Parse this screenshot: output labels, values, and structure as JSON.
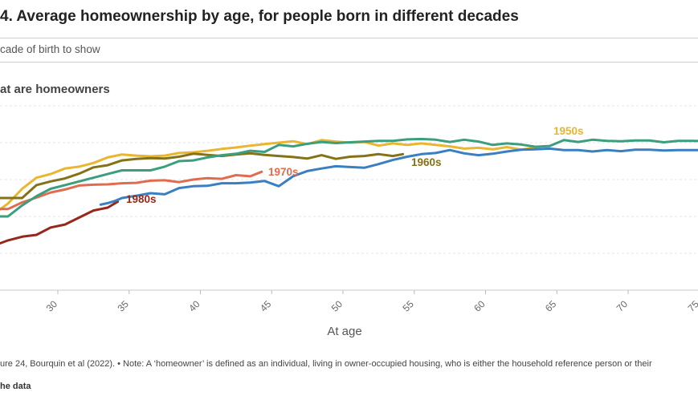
{
  "header": {
    "title": "4. Average homeownership by age, for people born in different decades",
    "control_label": "cade of birth to show",
    "y_axis_label": "at are homeowners"
  },
  "footer": {
    "note": "ure 24, Bourquin et al (2022). • Note: A ‘homeowner’ is defined as an individual, living in owner-occupied housing, who is either the household reference person or their",
    "get_data": "he data"
  },
  "chart_data": {
    "type": "line",
    "xlabel": "At age",
    "x_ticks": [
      "30",
      "35",
      "40",
      "45",
      "50",
      "55",
      "60",
      "65",
      "70",
      "75"
    ],
    "xlim": [
      25.8,
      75.6
    ],
    "ylim": [
      0,
      50
    ],
    "grid": true,
    "series": [
      {
        "name": "1950s",
        "color": "#eab630",
        "x": [
          25.8,
          26.5,
          27.5,
          28.5,
          29.5,
          30.5,
          31.5,
          32.5,
          33.5,
          34.5,
          35.5,
          36.5,
          37.5,
          38.5,
          39.5,
          40.5,
          41.5,
          42.5,
          43.5,
          44.5,
          45.5,
          46.5,
          47.5,
          48.5,
          49.5,
          50.5,
          51.5,
          52.5,
          53.5,
          54.5,
          55.5,
          56.5,
          57.5,
          58.5,
          59.5,
          60.5,
          61.5,
          62.5,
          63.5
        ],
        "y": [
          21.5,
          23.5,
          27.5,
          30.5,
          31.5,
          33,
          33.5,
          34.5,
          36,
          36.8,
          36.5,
          36.3,
          36.5,
          37.2,
          37.4,
          37.8,
          38.3,
          38.7,
          39.2,
          39.6,
          40,
          40.4,
          39.6,
          40.7,
          40.3,
          40,
          40.2,
          39.2,
          39.8,
          39.4,
          39.8,
          39.4,
          39,
          38.4,
          38.6,
          38.2,
          38.8,
          38.1,
          38.7
        ]
      },
      {
        "name": "1960s",
        "color": "#857118",
        "x": [
          25.8,
          26.5,
          27.5,
          28.5,
          29.5,
          30.5,
          31.5,
          32.5,
          33.5,
          34.5,
          35.5,
          36.5,
          37.5,
          38.5,
          39.5,
          40.5,
          41.5,
          42.5,
          43.5,
          44.5,
          45.5,
          46.5,
          47.5,
          48.5,
          49.5,
          50.5,
          51.5,
          52.5,
          53.5,
          54.2
        ],
        "y": [
          25,
          25,
          25,
          28.5,
          29.5,
          30.3,
          31.6,
          33.3,
          33.9,
          35.2,
          35.6,
          35.8,
          35.7,
          36.2,
          37,
          36.7,
          36.4,
          36.8,
          37.1,
          36.7,
          36.4,
          36.1,
          35.7,
          36.6,
          35.6,
          36.2,
          36.4,
          36.9,
          36.4,
          36.9
        ]
      },
      {
        "name": "1970s",
        "color": "#e06c50",
        "x": [
          25.8,
          26.5,
          27.5,
          28.5,
          29.5,
          30.5,
          31.5,
          32.5,
          33.5,
          34.5,
          35.5,
          36.5,
          37.5,
          38.5,
          39.5,
          40.5,
          41.5,
          42.5,
          43.5,
          44.3
        ],
        "y": [
          22,
          22,
          23.8,
          25.1,
          26.5,
          27.3,
          28.4,
          28.6,
          28.7,
          29,
          29.1,
          29.7,
          29.8,
          29.3,
          30,
          30.4,
          30.2,
          31.2,
          30.9,
          32.1
        ]
      },
      {
        "name": "1980s",
        "color": "#96281b",
        "x": [
          25.8,
          26.5,
          27.5,
          28.5,
          29.5,
          30.5,
          31.5,
          32.5,
          33.5,
          34.2
        ],
        "y": [
          12.5,
          13.5,
          14.5,
          15,
          17,
          17.8,
          19.7,
          21.6,
          22.4,
          24
        ]
      },
      {
        "name": "",
        "color": "#3a7fc1",
        "x": [
          33,
          33.5,
          34,
          34.5,
          35.5,
          36.5,
          37.5,
          38.5,
          39.5,
          40.5,
          41.5,
          42.5,
          43.5,
          44.5,
          45.5,
          46.5,
          47.5,
          48.5,
          49.5,
          50.5,
          51.5,
          52.5,
          53.5,
          54.5,
          55.5,
          56.5,
          57.5,
          58.5,
          59.5,
          60.5,
          61.5,
          62.5,
          63.5,
          64.5,
          65.5,
          66.5,
          67.5,
          68.5,
          69.5,
          70.5,
          71.5,
          72.5,
          73.5,
          74.5,
          75.6
        ],
        "y": [
          23.2,
          23.6,
          24.2,
          25,
          25.6,
          26.3,
          26,
          27.7,
          28.2,
          28.3,
          29,
          29,
          29.2,
          29.6,
          28.2,
          30.9,
          32.3,
          33,
          33.6,
          33.4,
          33.2,
          34.2,
          35.3,
          36.2,
          36.9,
          37.2,
          38,
          37.1,
          36.6,
          37,
          37.6,
          38.1,
          38.2,
          38.4,
          38,
          38,
          37.6,
          38,
          37.7,
          38.1,
          38.1,
          37.9,
          38,
          38,
          38
        ]
      },
      {
        "name": "",
        "color": "#3b9e7e",
        "x": [
          25.8,
          26.5,
          27.5,
          28.5,
          29.5,
          30.5,
          31.5,
          32.5,
          33.5,
          34.5,
          35.5,
          36.5,
          37.5,
          38.5,
          39.5,
          40.5,
          41.5,
          42.5,
          43.5,
          44.5,
          45.5,
          46.5,
          47.5,
          48.5,
          49.5,
          50.5,
          51.5,
          52.5,
          53.5,
          54.5,
          55.5,
          56.5,
          57.5,
          58.5,
          59.5,
          60.5,
          61.5,
          62.5,
          63.5,
          64.5,
          65.5,
          66.5,
          67.5,
          68.5,
          69.5,
          70.5,
          71.5,
          72.5,
          73.5,
          74.5,
          75.6
        ],
        "y": [
          20,
          20,
          23,
          25.5,
          27.5,
          28.5,
          29.5,
          30.5,
          31.5,
          32.5,
          32.5,
          32.5,
          33.5,
          35,
          35.2,
          36,
          36.6,
          37,
          37.8,
          37.5,
          39.4,
          39,
          39.7,
          40.2,
          39.9,
          40.1,
          40.3,
          40.5,
          40.5,
          40.9,
          41,
          40.8,
          40.2,
          40.8,
          40.3,
          39.4,
          39.8,
          39.5,
          38.9,
          39.1,
          40.7,
          40.2,
          40.8,
          40.5,
          40.4,
          40.6,
          40.6,
          40.1,
          40.5,
          40.5,
          40.4
        ]
      }
    ],
    "labels": [
      {
        "text": "1950s",
        "series": 0
      },
      {
        "text": "1960s",
        "series": 1
      },
      {
        "text": "1970s",
        "series": 2
      },
      {
        "text": "1980s",
        "series": 3
      }
    ]
  }
}
